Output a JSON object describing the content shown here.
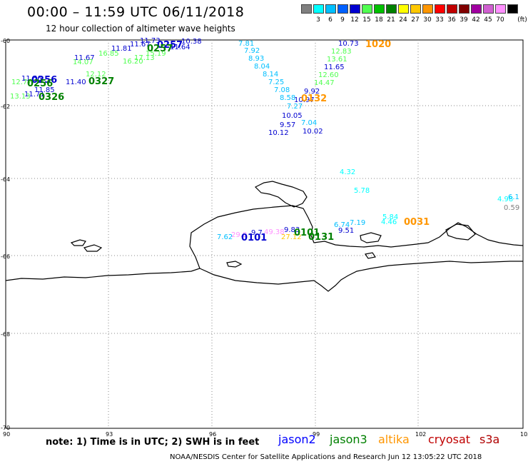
{
  "header": {
    "title": "00:00 – 11:59 UTC 06/11/2018",
    "subtitle": "12 hour collection of altimeter wave heights"
  },
  "legend": {
    "unit": "(ft)",
    "bins": [
      {
        "color": "#808080",
        "label": ""
      },
      {
        "color": "#00ffff",
        "label": "3"
      },
      {
        "color": "#00bfff",
        "label": "6"
      },
      {
        "color": "#0060ff",
        "label": "9"
      },
      {
        "color": "#0000d0",
        "label": "12"
      },
      {
        "color": "#50ff50",
        "label": "15"
      },
      {
        "color": "#00c000",
        "label": "18"
      },
      {
        "color": "#008000",
        "label": "21"
      },
      {
        "color": "#ffff00",
        "label": "24"
      },
      {
        "color": "#ffc800",
        "label": "27"
      },
      {
        "color": "#ff9600",
        "label": "30"
      },
      {
        "color": "#ff0000",
        "label": "33"
      },
      {
        "color": "#c00000",
        "label": "36"
      },
      {
        "color": "#800000",
        "label": "39"
      },
      {
        "color": "#a000a0",
        "label": "42"
      },
      {
        "color": "#d060d0",
        "label": "45"
      },
      {
        "color": "#ff90ff",
        "label": "70"
      },
      {
        "color": "#000000",
        "label": ""
      }
    ]
  },
  "axes": {
    "lat_labels": [
      "-60",
      "-62",
      "-64",
      "-66",
      "-68",
      "-70"
    ],
    "lon_labels": [
      "90",
      "93",
      "96",
      "99",
      "102",
      "105"
    ]
  },
  "wave_labels": [
    {
      "text": "7.81",
      "color": "#00bfff"
    },
    {
      "text": "7.92",
      "color": "#00bfff"
    },
    {
      "text": "8.93",
      "color": "#00bfff"
    },
    {
      "text": "8.04",
      "color": "#00bfff"
    },
    {
      "text": "8.14",
      "color": "#00bfff"
    },
    {
      "text": "7.25",
      "color": "#00bfff"
    },
    {
      "text": "7.08",
      "color": "#00bfff"
    },
    {
      "text": "8.58",
      "color": "#00bfff"
    },
    {
      "text": "7.27",
      "color": "#00bfff"
    },
    {
      "text": "10.05",
      "color": "#0000d0"
    },
    {
      "text": "9.57",
      "color": "#0000d0"
    },
    {
      "text": "10.12",
      "color": "#0000d0"
    },
    {
      "text": "7.04",
      "color": "#00bfff"
    },
    {
      "text": "10.02",
      "color": "#0000d0"
    },
    {
      "text": "9.92",
      "color": "#0000d0"
    },
    {
      "text": "10.97",
      "color": "#0000d0"
    },
    {
      "text": "10.73",
      "color": "#0000d0"
    },
    {
      "text": "12.83",
      "color": "#50ff50"
    },
    {
      "text": "13.61",
      "color": "#50ff50"
    },
    {
      "text": "11.65",
      "color": "#0000d0"
    },
    {
      "text": "12.60",
      "color": "#50ff50"
    },
    {
      "text": "14.47",
      "color": "#50ff50"
    },
    {
      "text": "4.32",
      "color": "#00ffff"
    },
    {
      "text": "5.78",
      "color": "#00ffff"
    },
    {
      "text": "6.74",
      "color": "#00bfff"
    },
    {
      "text": "7.19",
      "color": "#00bfff"
    },
    {
      "text": "9.51",
      "color": "#0000d0"
    },
    {
      "text": "5.84",
      "color": "#00ffff"
    },
    {
      "text": "4.46",
      "color": "#00ffff"
    },
    {
      "text": "4.98",
      "color": "#00ffff"
    },
    {
      "text": "6.1",
      "color": "#00bfff"
    },
    {
      "text": "0.59",
      "color": "#808080"
    },
    {
      "text": "7.62",
      "color": "#00bfff"
    },
    {
      "text": "29.0",
      "color": "#ff90ff"
    },
    {
      "text": "9.7",
      "color": "#0000d0"
    },
    {
      "text": "49.38",
      "color": "#ff90ff"
    },
    {
      "text": "9.83",
      "color": "#0000d0"
    },
    {
      "text": "27.12",
      "color": "#ffc800"
    },
    {
      "text": "10.38",
      "color": "#0000d0"
    },
    {
      "text": "11.73",
      "color": "#0000d0"
    },
    {
      "text": "11.64",
      "color": "#0000d0"
    },
    {
      "text": "11.67",
      "color": "#0000d0"
    },
    {
      "text": "11.81",
      "color": "#0000d0"
    },
    {
      "text": "15.19",
      "color": "#50ff50"
    },
    {
      "text": "17.13",
      "color": "#50ff50"
    },
    {
      "text": "16.20",
      "color": "#50ff50"
    },
    {
      "text": "16.85",
      "color": "#50ff50"
    },
    {
      "text": "11.67",
      "color": "#0000d0"
    },
    {
      "text": "14.07",
      "color": "#50ff50"
    },
    {
      "text": "12.12",
      "color": "#50ff50"
    },
    {
      "text": "11.40",
      "color": "#0000d0"
    },
    {
      "text": "11.85",
      "color": "#0000d0"
    },
    {
      "text": "11.71",
      "color": "#0000d0"
    },
    {
      "text": "13.13",
      "color": "#50ff50"
    },
    {
      "text": "12.77",
      "color": "#50ff50"
    },
    {
      "text": "11.56",
      "color": "#0000d0"
    }
  ],
  "pass_labels": [
    {
      "text": "1020",
      "color": "#ff9600"
    },
    {
      "text": "0132",
      "color": "#ff9600"
    },
    {
      "text": "0031",
      "color": "#ff9600"
    },
    {
      "text": "0101",
      "color": "#0000d0"
    },
    {
      "text": "0131",
      "color": "#008000"
    },
    {
      "text": "0101",
      "color": "#008000"
    },
    {
      "text": "0257",
      "color": "#0000d0"
    },
    {
      "text": "0257",
      "color": "#008000"
    },
    {
      "text": "0327",
      "color": "#008000"
    },
    {
      "text": "0326",
      "color": "#008000"
    },
    {
      "text": "0256",
      "color": "#0000d0"
    },
    {
      "text": "0256",
      "color": "#008000"
    }
  ],
  "footer": {
    "note": "note: 1) Time is in UTC; 2) SWH is in feet",
    "satellites": [
      {
        "name": "jason2",
        "color": "#0000ff"
      },
      {
        "name": "jason3",
        "color": "#008000"
      },
      {
        "name": "altika",
        "color": "#ff9600"
      },
      {
        "name": "cryosat",
        "color": "#c00000"
      },
      {
        "name": "s3a",
        "color": "#b00000"
      }
    ],
    "credit": "NOAA/NESDIS Center for Satellite Applications and Research   Jun 12 13:05:22 UTC 2018"
  }
}
